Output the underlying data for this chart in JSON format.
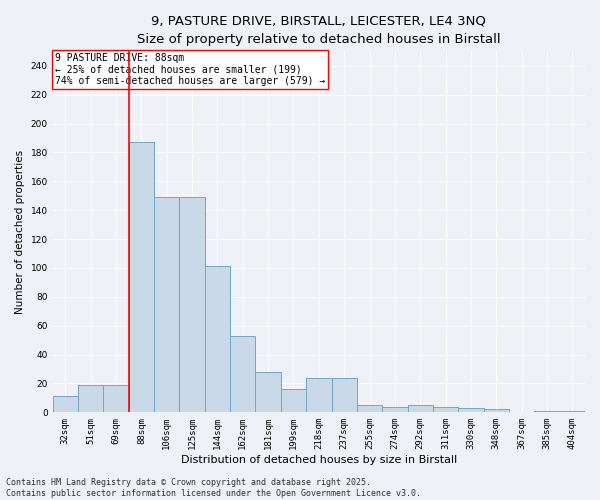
{
  "title_line1": "9, PASTURE DRIVE, BIRSTALL, LEICESTER, LE4 3NQ",
  "title_line2": "Size of property relative to detached houses in Birstall",
  "xlabel": "Distribution of detached houses by size in Birstall",
  "ylabel": "Number of detached properties",
  "categories": [
    "32sqm",
    "51sqm",
    "69sqm",
    "88sqm",
    "106sqm",
    "125sqm",
    "144sqm",
    "162sqm",
    "181sqm",
    "199sqm",
    "218sqm",
    "237sqm",
    "255sqm",
    "274sqm",
    "292sqm",
    "311sqm",
    "330sqm",
    "348sqm",
    "367sqm",
    "385sqm",
    "404sqm"
  ],
  "values": [
    11,
    19,
    19,
    187,
    149,
    149,
    101,
    53,
    28,
    16,
    24,
    24,
    5,
    4,
    5,
    4,
    3,
    2,
    0,
    1,
    1
  ],
  "bar_color": "#c9d9e8",
  "bar_edge_color": "#6fa8c8",
  "background_color": "#eef2f7",
  "grid_color": "#ffffff",
  "vline_x_index": 3,
  "vline_color": "red",
  "annotation_text": "9 PASTURE DRIVE: 88sqm\n← 25% of detached houses are smaller (199)\n74% of semi-detached houses are larger (579) →",
  "annotation_box_color": "white",
  "annotation_box_edge": "red",
  "ylim": [
    0,
    250
  ],
  "yticks": [
    0,
    20,
    40,
    60,
    80,
    100,
    120,
    140,
    160,
    180,
    200,
    220,
    240
  ],
  "footer": "Contains HM Land Registry data © Crown copyright and database right 2025.\nContains public sector information licensed under the Open Government Licence v3.0.",
  "title_fontsize": 9.5,
  "annotation_fontsize": 7,
  "footer_fontsize": 6,
  "ylabel_fontsize": 7.5,
  "xlabel_fontsize": 8,
  "tick_fontsize": 6.5
}
